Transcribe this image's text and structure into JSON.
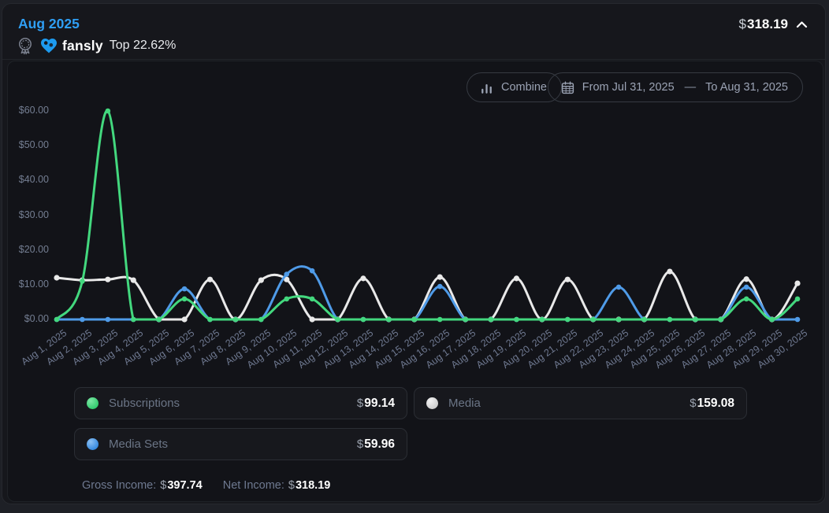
{
  "header": {
    "month": "Aug 2025",
    "amount_symbol": "$",
    "amount": "318.19",
    "badge": {
      "brand": "fansly",
      "rank_text": "Top 22.62%"
    }
  },
  "toolbar": {
    "combine_label": "Combine",
    "date_from": "From Jul 31, 2025",
    "date_separator": "—",
    "date_to": "To Aug 31, 2025"
  },
  "chart_data": {
    "type": "line",
    "x": [
      "Aug 1, 2025",
      "Aug 2, 2025",
      "Aug 3, 2025",
      "Aug 4, 2025",
      "Aug 5, 2025",
      "Aug 6, 2025",
      "Aug 7, 2025",
      "Aug 8, 2025",
      "Aug 9, 2025",
      "Aug 10, 2025",
      "Aug 11, 2025",
      "Aug 12, 2025",
      "Aug 13, 2025",
      "Aug 14, 2025",
      "Aug 15, 2025",
      "Aug 16, 2025",
      "Aug 17, 2025",
      "Aug 18, 2025",
      "Aug 19, 2025",
      "Aug 20, 2025",
      "Aug 21, 2025",
      "Aug 22, 2025",
      "Aug 23, 2025",
      "Aug 24, 2025",
      "Aug 25, 2025",
      "Aug 26, 2025",
      "Aug 27, 2025",
      "Aug 28, 2025",
      "Aug 29, 2025",
      "Aug 30, 2025"
    ],
    "series": [
      {
        "name": "Subscriptions",
        "color": "#43d87e",
        "values": [
          0,
          11,
          60,
          0,
          0,
          5.9,
          0,
          0,
          0,
          5.9,
          5.9,
          0,
          0,
          0,
          0,
          0,
          0,
          0,
          0,
          0,
          0,
          0,
          0,
          0,
          0,
          0,
          0,
          5.9,
          0,
          5.9
        ]
      },
      {
        "name": "Media",
        "color": "#e9e9e9",
        "values": [
          12,
          11.3,
          11.5,
          11.3,
          0,
          0,
          11.5,
          0,
          11.3,
          11.5,
          0,
          0,
          11.8,
          0,
          0,
          12.2,
          0,
          0,
          11.8,
          0,
          11.5,
          0,
          0,
          0,
          13.8,
          0,
          0,
          11.6,
          0,
          10.4
        ]
      },
      {
        "name": "Media Sets",
        "color": "#4f9be8",
        "values": [
          0,
          0,
          0,
          0,
          0,
          8.8,
          0,
          0,
          0,
          13,
          14,
          0,
          0,
          0,
          0,
          9.5,
          0,
          0,
          0,
          0,
          0,
          0,
          9.3,
          0,
          0,
          0,
          0,
          9.3,
          0,
          0
        ]
      }
    ],
    "ylim": [
      0,
      60
    ],
    "ytick_labels": [
      "$60.00",
      "$50.00",
      "$40.00",
      "$30.00",
      "$20.00",
      "$10.00",
      "$0.00"
    ],
    "grid": false,
    "legend_position": "bottom",
    "draw_order": [
      "Media",
      "Media Sets",
      "Subscriptions"
    ]
  },
  "legend": [
    {
      "label": "Subscriptions",
      "symbol": "$",
      "value": "99.14",
      "color": "#35cc70",
      "color_hi": "#7ee6a5"
    },
    {
      "label": "Media",
      "symbol": "$",
      "value": "159.08",
      "color": "#cfcfcf",
      "color_hi": "#f2f2f2"
    },
    {
      "label": "Media Sets",
      "symbol": "$",
      "value": "59.96",
      "color": "#3a8ce0",
      "color_hi": "#8dc0f2"
    }
  ],
  "footer": {
    "gross_label": "Gross Income:",
    "gross_symbol": "$",
    "gross_value": "397.74",
    "net_label": "Net Income:",
    "net_symbol": "$",
    "net_value": "318.19"
  },
  "colors": {
    "accent_blue": "#2f9ff5",
    "brand_blue": "#1d9bf0"
  }
}
